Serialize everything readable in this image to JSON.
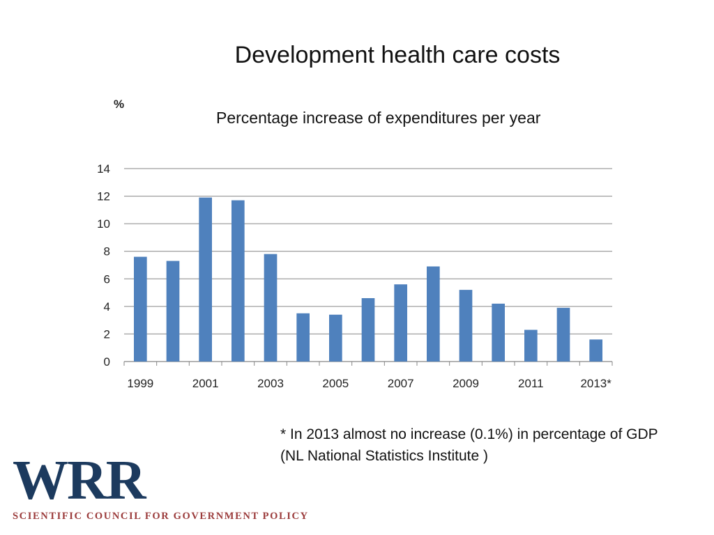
{
  "slide": {
    "title": "Development health care costs",
    "footnote": "* In 2013 almost no increase (0.1%) in percentage of GDP  (NL National Statistics Institute )",
    "logo": {
      "mark": "WRR",
      "tagline": "SCIENTIFIC COUNCIL FOR GOVERNMENT POLICY"
    }
  },
  "chart_data": {
    "type": "bar",
    "title": "Percentage increase of expenditures per year",
    "ylabel": "%",
    "xlabel": "",
    "categories": [
      "1999",
      "2000",
      "2001",
      "2002",
      "2003",
      "2004",
      "2005",
      "2006",
      "2007",
      "2008",
      "2009",
      "2010",
      "2011",
      "2012",
      "2013*"
    ],
    "x_tick_labels": [
      "1999",
      "",
      "2001",
      "",
      "2003",
      "",
      "2005",
      "",
      "2007",
      "",
      "2009",
      "",
      "2011",
      "",
      "2013*"
    ],
    "values": [
      7.6,
      7.3,
      11.9,
      11.7,
      7.8,
      3.5,
      3.4,
      4.6,
      5.6,
      6.9,
      5.2,
      4.2,
      2.3,
      3.9,
      1.6
    ],
    "ylim": [
      0,
      14
    ],
    "y_ticks": [
      0,
      2,
      4,
      6,
      8,
      10,
      12,
      14
    ],
    "grid": true,
    "legend": "none",
    "bar_color": "#4f81bd",
    "grid_color": "#868686"
  }
}
